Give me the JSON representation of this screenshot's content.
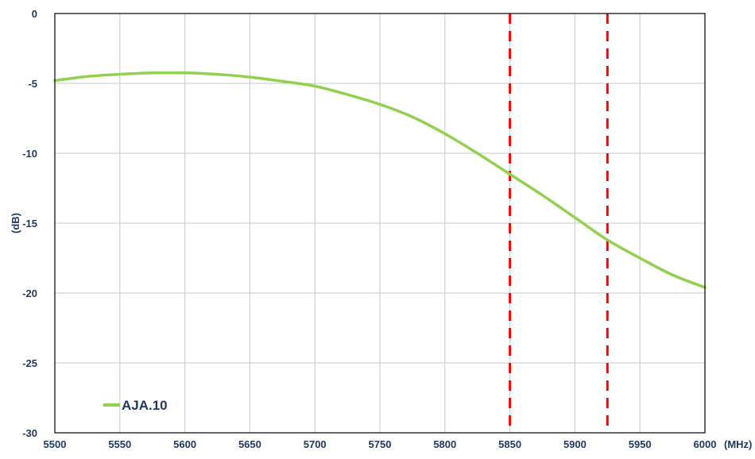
{
  "chart_data": {
    "type": "line",
    "title": "",
    "xlabel": "(MHz)",
    "ylabel": "(dB)",
    "xlim": [
      5500,
      6000
    ],
    "ylim": [
      -30,
      0
    ],
    "x_ticks": [
      5500,
      5550,
      5600,
      5650,
      5700,
      5750,
      5800,
      5850,
      5900,
      5950,
      6000
    ],
    "y_ticks": [
      0,
      -5,
      -10,
      -15,
      -20,
      -25,
      -30
    ],
    "grid": true,
    "legend_position": "bottom-left",
    "series": [
      {
        "name": "AJA.10",
        "color": "#92d050",
        "x": [
          5500,
          5525,
          5550,
          5575,
          5600,
          5625,
          5650,
          5675,
          5700,
          5725,
          5750,
          5775,
          5800,
          5825,
          5850,
          5875,
          5900,
          5925,
          5950,
          5975,
          6000
        ],
        "y": [
          -4.8,
          -4.5,
          -4.35,
          -4.25,
          -4.25,
          -4.35,
          -4.55,
          -4.85,
          -5.2,
          -5.8,
          -6.5,
          -7.4,
          -8.6,
          -10.0,
          -11.5,
          -13.0,
          -14.6,
          -16.2,
          -17.5,
          -18.7,
          -19.6
        ]
      }
    ],
    "reference_lines": [
      {
        "x": 5850,
        "color": "#ff0000",
        "style": "dashed"
      },
      {
        "x": 5925,
        "color": "#ff0000",
        "style": "dashed"
      }
    ]
  }
}
